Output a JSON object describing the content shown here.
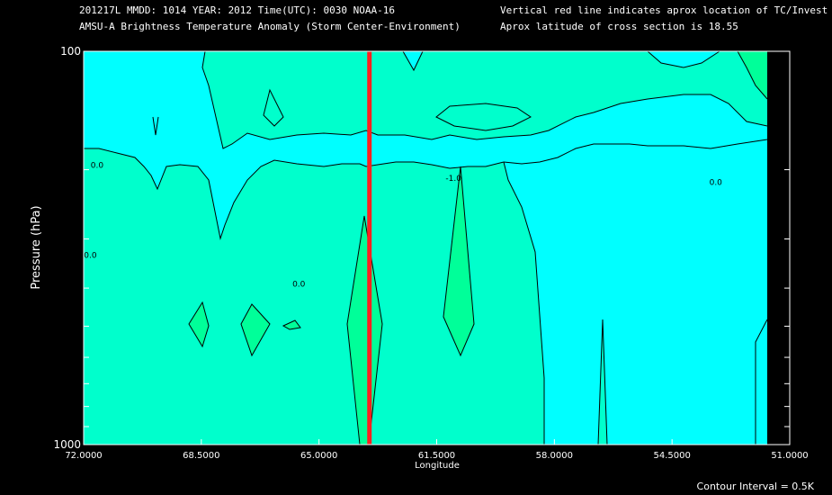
{
  "header": {
    "line1_left": "201217L  MMDD: 1014 YEAR: 2012 Time(UTC): 0030 NOAA-16",
    "line2_left": "AMSU-A Brightness Temperature Anomaly (Storm Center-Environment)",
    "line1_right": "Vertical red line indicates aprox location of TC/Invest",
    "line2_right": "Aprox latitude of cross section is 18.55"
  },
  "footer": {
    "contour_interval": "Contour Interval = 0.5K"
  },
  "colors": {
    "background": "#000000",
    "cyan": "#00ffff",
    "seagreen": "#00ffcc",
    "green": "#00ff99",
    "tc_line": "#ff2020"
  },
  "chart_data": {
    "type": "contour",
    "title": "AMSU-A Brightness Temperature Anomaly (Storm Center-Environment)",
    "xlabel": "Longitude",
    "ylabel": "Pressure (hPa)",
    "x_ticks": [
      "72.0000",
      "68.5000",
      "65.0000",
      "61.5000",
      "58.0000",
      "54.5000",
      "51.0000"
    ],
    "x_tick_values": [
      72.0,
      68.5,
      65.0,
      61.5,
      58.0,
      54.5,
      51.0
    ],
    "xlim": [
      72.0,
      51.0
    ],
    "y_ticks": [
      "100",
      "1000"
    ],
    "ylim": [
      100,
      1000
    ],
    "y_scale": "log",
    "tc_longitude": 63.5,
    "cross_section_latitude": 18.55,
    "contour_labels": [
      {
        "text": "-1.0",
        "lon": 61.0,
        "pressure": 210
      },
      {
        "text": "0.0",
        "lon": 71.6,
        "pressure": 195
      },
      {
        "text": "0.0",
        "lon": 71.8,
        "pressure": 330
      },
      {
        "text": "0.0",
        "lon": 65.6,
        "pressure": 390
      },
      {
        "text": "0.0",
        "lon": 53.2,
        "pressure": 215
      }
    ],
    "contour_interval": 0.5
  }
}
